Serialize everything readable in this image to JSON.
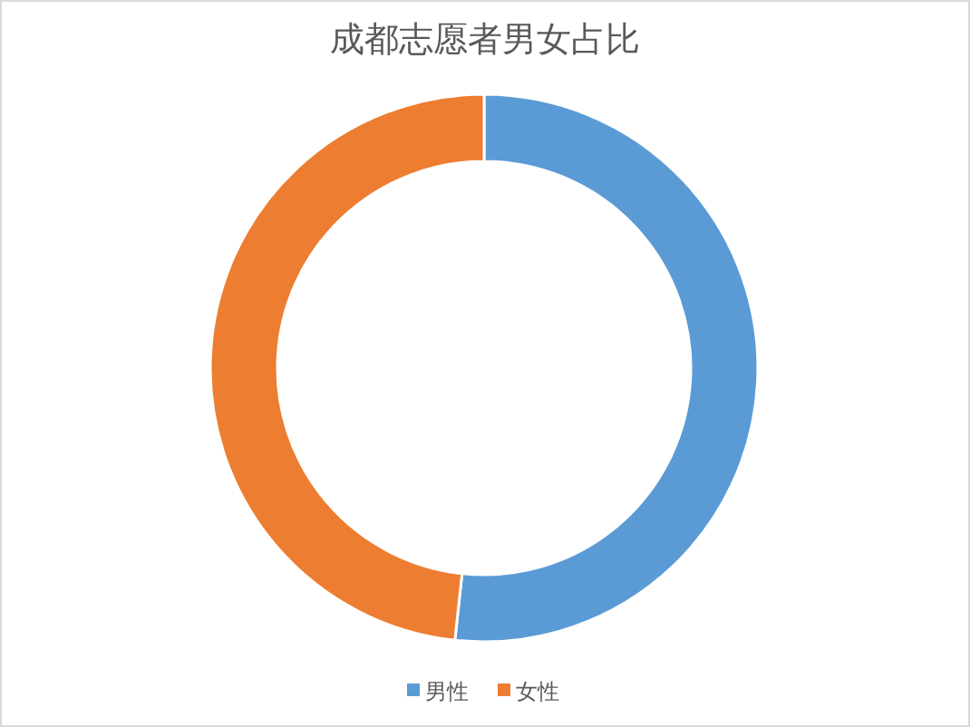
{
  "chart_data": {
    "type": "donut",
    "title": "成都志愿者男女占比",
    "categories": [
      "男性",
      "女性"
    ],
    "values": [
      51.7,
      48.3
    ],
    "colors": [
      "#5b9bd5",
      "#ed7d31"
    ],
    "legend": "bottom"
  }
}
